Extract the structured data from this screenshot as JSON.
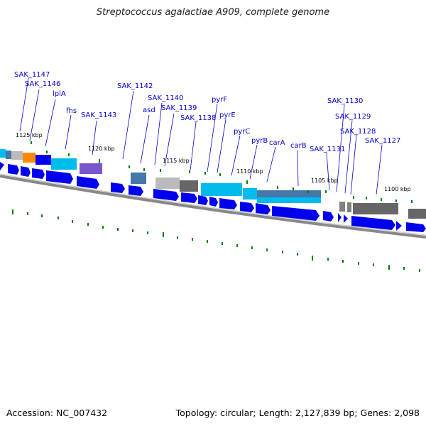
{
  "title": "Streptococcus agalactiae A909, complete genome",
  "footer": {
    "accession": "Accession: NC_007432",
    "summary": "Topology: circular; Length: 2,127,839 bp; Genes: 2,098"
  },
  "ruler_labels": [
    "1125 kbp",
    "1120 kbp",
    "1115 kbp",
    "1110 kbp",
    "1105 kbp",
    "1100 kbp"
  ],
  "gene_labels": [
    "SAK_1147",
    "SAK_1146",
    "lplA",
    "fhs",
    "SAK_1143",
    "SAK_1142",
    "SAK_1140",
    "asd",
    "SAK_1139",
    "SAK_1138",
    "pyrF",
    "pyrE",
    "pyrC",
    "pyrB",
    "carA",
    "carB",
    "SAK_1131",
    "SAK_1130",
    "SAK_1129",
    "SAK_1128",
    "SAK_1127"
  ],
  "colors": {
    "gene_label": "#0000cc",
    "gene_arrow": "#0000ee",
    "tick": "#008000",
    "backbone": "#888888",
    "cyan": "#00bbee",
    "gray": "#808080",
    "orange": "#ff8800",
    "purple": "#7755cc",
    "steelblue": "#4477aa"
  }
}
